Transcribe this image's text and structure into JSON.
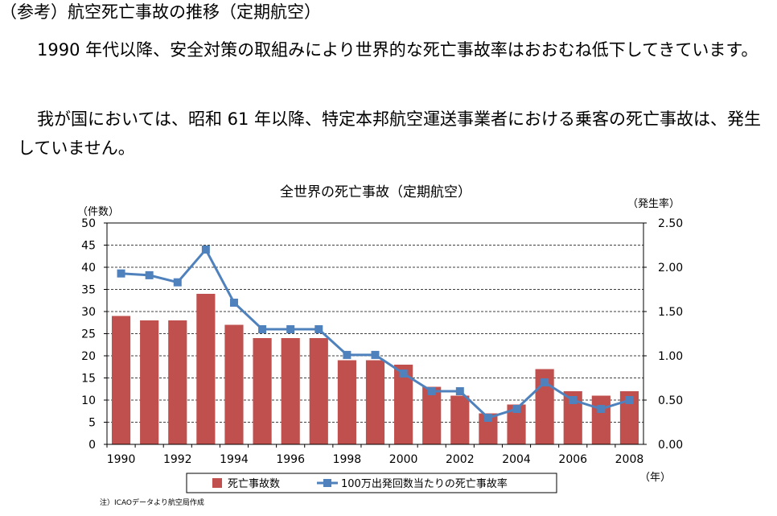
{
  "heading": "（参考）航空死亡事故の推移（定期航空）",
  "paragraphs": [
    "1990 年代以降、安全対策の取組みにより世界的な死亡事故率はおおむね低下してきています。",
    "我が国においては、昭和 61 年以降、特定本邦航空運送事業者における乗客の死亡事故は、発生していません。"
  ],
  "chart_data": {
    "type": "bar",
    "title": "全世界の死亡事故（定期航空）",
    "ylabel_left": "（件数）",
    "ylabel_right": "（発生率）",
    "xlabel": "（年）",
    "x": [
      1990,
      1991,
      1992,
      1993,
      1994,
      1995,
      1996,
      1997,
      1998,
      1999,
      2000,
      2001,
      2002,
      2003,
      2004,
      2005,
      2006,
      2007,
      2008
    ],
    "x_tick_labels": [
      "1990",
      "1992",
      "1994",
      "1996",
      "1998",
      "2000",
      "2002",
      "2004",
      "2006",
      "2008"
    ],
    "y_left_ticks": [
      "0",
      "5",
      "10",
      "15",
      "20",
      "25",
      "30",
      "35",
      "40",
      "45",
      "50"
    ],
    "y_right_ticks": [
      "0.00",
      "0.50",
      "1.00",
      "1.50",
      "2.00",
      "2.50"
    ],
    "ylim_left": [
      0,
      50
    ],
    "ylim_right": [
      0,
      2.5
    ],
    "grid": "horizontal-dashed",
    "legend_position": "bottom",
    "series": [
      {
        "name": "死亡事故数",
        "kind": "bar",
        "axis": "left",
        "color": "#c0504d",
        "values": [
          29,
          28,
          28,
          34,
          27,
          24,
          24,
          24,
          19,
          19,
          18,
          13,
          11,
          7,
          9,
          17,
          12,
          11,
          12
        ]
      },
      {
        "name": "100万出発回数当たりの死亡事故率",
        "kind": "line",
        "axis": "right",
        "color": "#4f81bd",
        "values": [
          1.93,
          1.91,
          1.83,
          2.2,
          1.6,
          1.3,
          1.3,
          1.3,
          1.01,
          1.01,
          0.8,
          0.6,
          0.6,
          0.3,
          0.4,
          0.7,
          0.5,
          0.4,
          0.5
        ]
      }
    ]
  },
  "note": "注）ICAOデータより航空局作成"
}
